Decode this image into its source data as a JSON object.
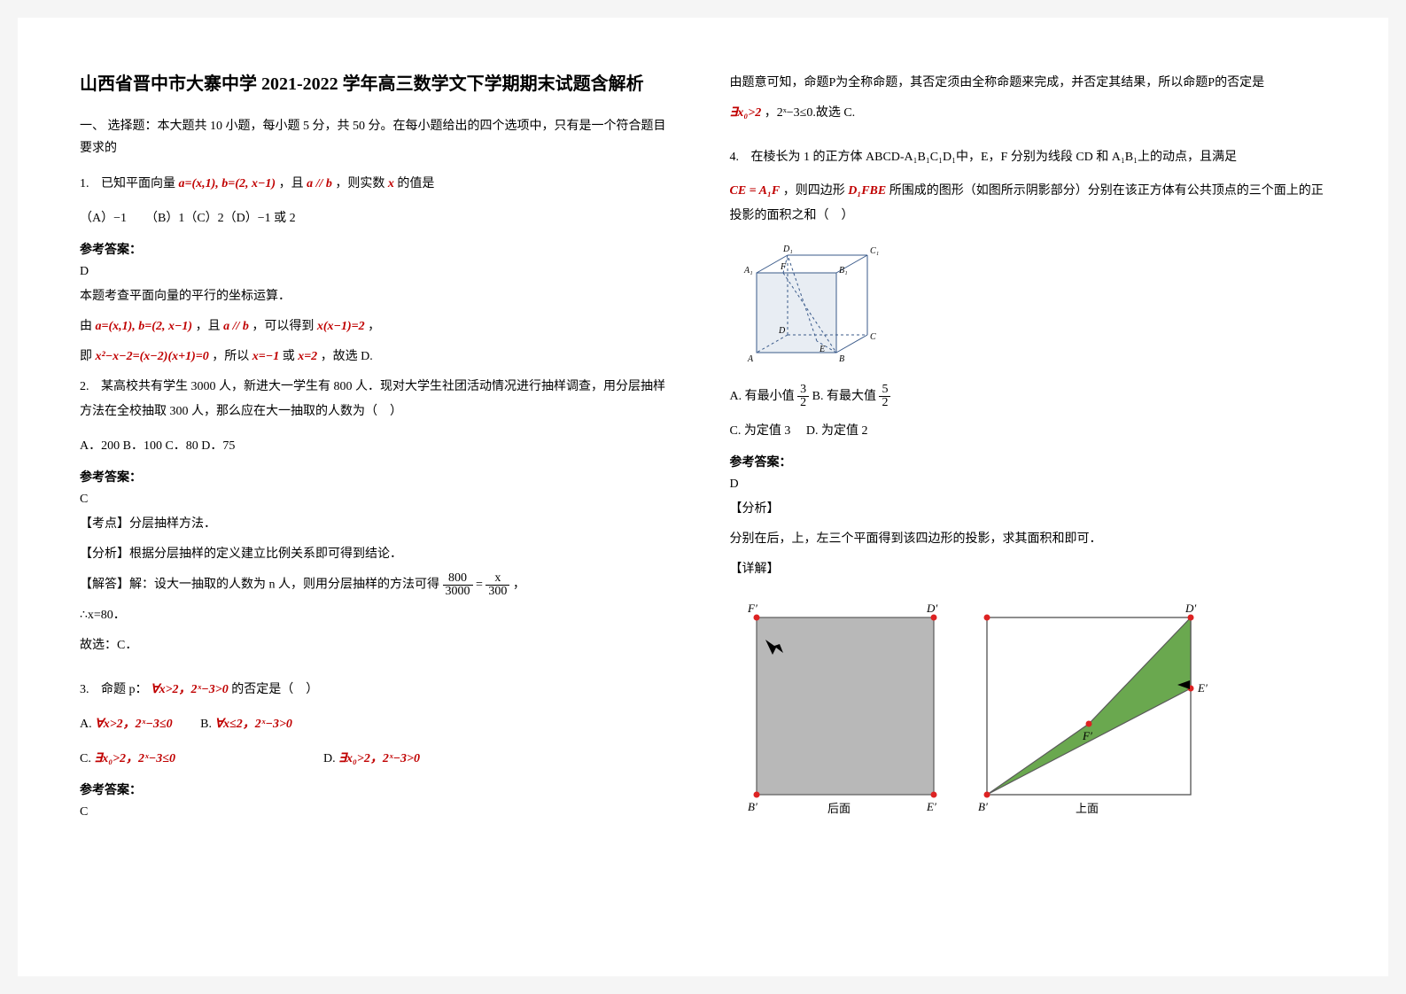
{
  "title": "山西省晋中市大寨中学 2021-2022 学年高三数学文下学期期末试题含解析",
  "section1": "一、 选择题：本大题共 10 小题，每小题 5 分，共 50 分。在每小题给出的四个选项中，只有是一个符合题目要求的",
  "q1": {
    "num": "1.",
    "pre": "已知平面向量",
    "vec": "a=(x,1), b=(2, x−1)",
    "mid": "，且",
    "par": "a // b",
    "post": "，则实数",
    "xvar": "x",
    "tail": "的值是",
    "opts": "（A）−1　　（B）1（C）2（D）−1 或 2",
    "ans_label": "参考答案：",
    "ans": "D",
    "expl1": "本题考查平面向量的平行的坐标运算．",
    "expl2_pre": "由",
    "expl2_red": "a=(x,1), b=(2, x−1)",
    "expl2_mid": "，且",
    "expl2_red2": "a // b",
    "expl2_post": "，可以得到",
    "expl2_red3": "x(x−1)=2",
    "expl2_comma": "，",
    "expl3_pre": "即",
    "expl3_red": "x²−x−2=(x−2)(x+1)=0",
    "expl3_mid": "，所以",
    "expl3_red2": "x=−1",
    "expl3_or": "或",
    "expl3_red3": "x=2",
    "expl3_post": "，故选 D."
  },
  "q2": {
    "num": "2.",
    "text": "某高校共有学生 3000 人，新进大一学生有 800 人．现对大学生社团活动情况进行抽样调查，用分层抽样方法在全校抽取 300 人，那么应在大一抽取的人数为（　）",
    "opts": "A．200 B．100 C．80  D．75",
    "ans_label": "参考答案：",
    "ans": "C",
    "expl1": "【考点】分层抽样方法．",
    "expl2": "【分析】根据分层抽样的定义建立比例关系即可得到结论．",
    "expl3_pre": "【解答】解：设大一抽取的人数为 n 人，则用分层抽样的方法可得",
    "frac1_n": "800",
    "frac1_d": "3000",
    "frac_eq": "=",
    "frac2_n": "x",
    "frac2_d": "300",
    "expl3_post": "，",
    "expl4": "∴x=80．",
    "expl5": "故选：C．"
  },
  "q3": {
    "num": "3.",
    "pre": "命题 p：",
    "red1": "∀x>2，2ˣ−3>0",
    "post": "的否定是（　）",
    "optA_pre": "A.  ",
    "optA_red": "∀x>2，2ˣ−3≤0",
    "optB_pre": "　　B.  ",
    "optB_red": "∀x≤2，2ˣ−3>0",
    "optC_pre": "C.  ",
    "optC_red": "∃x₀>2，2ˣ−3≤0",
    "optD_pre": "D.  ",
    "optD_red": "∃x₀>2，2ˣ−3>0",
    "ans_label": "参考答案：",
    "ans": "C",
    "col2_expl1": "由题意可知，命题P为全称命题，其否定须由全称命题来完成，并否定其结果，所以命题P的否定是",
    "col2_expl2_red": "∃x₀>2",
    "col2_expl2_mid": "，2ˣ−3≤0.故选 C."
  },
  "q4": {
    "num": "4.",
    "text1": "在棱长为 1 的正方体 ABCD-A₁B₁C₁D₁中，E，F 分别为线段 CD 和 A₁B₁上的动点，且满足",
    "red1": "CE = A₁F",
    "text2": "，则四边形",
    "red2": "D₁FBE",
    "text3": "所围成的图形（如图所示阴影部分）分别在该正方体有公共顶点的三个面上的正投影的面积之和（　）",
    "optA_pre": "A. 有最小值",
    "optA_n": "3",
    "optA_d": "2",
    "optB_pre": " B. 有最大值",
    "optB_n": "5",
    "optB_d": "2",
    "optC": "C. 为定值 3　 D. 为定值 2",
    "ans_label": "参考答案：",
    "ans": "D",
    "analysis_label": "【分析】",
    "analysis": "分别在后，上，左三个平面得到该四边形的投影，求其面积和即可．",
    "detail_label": "【详解】"
  },
  "cube": {
    "stroke": "#3a5a8a",
    "dash_stroke": "#3a5a8a",
    "fill": "#e8edf3",
    "labels": {
      "A": "A",
      "B": "B",
      "C": "C",
      "D": "D",
      "A1": "A₁",
      "B1": "B₁",
      "C1": "C₁",
      "D1": "D₁",
      "E": "E",
      "F": "F"
    }
  },
  "proj": {
    "stroke": "#5a5a5a",
    "fill1": "#b8b8b8",
    "fill2": "#6aa84f",
    "dot": "#d22",
    "labels": {
      "Fp": "F′",
      "Dp": "D′",
      "Bp": "B′",
      "Ep": "E′",
      "back": "后面",
      "top": "上面"
    }
  }
}
